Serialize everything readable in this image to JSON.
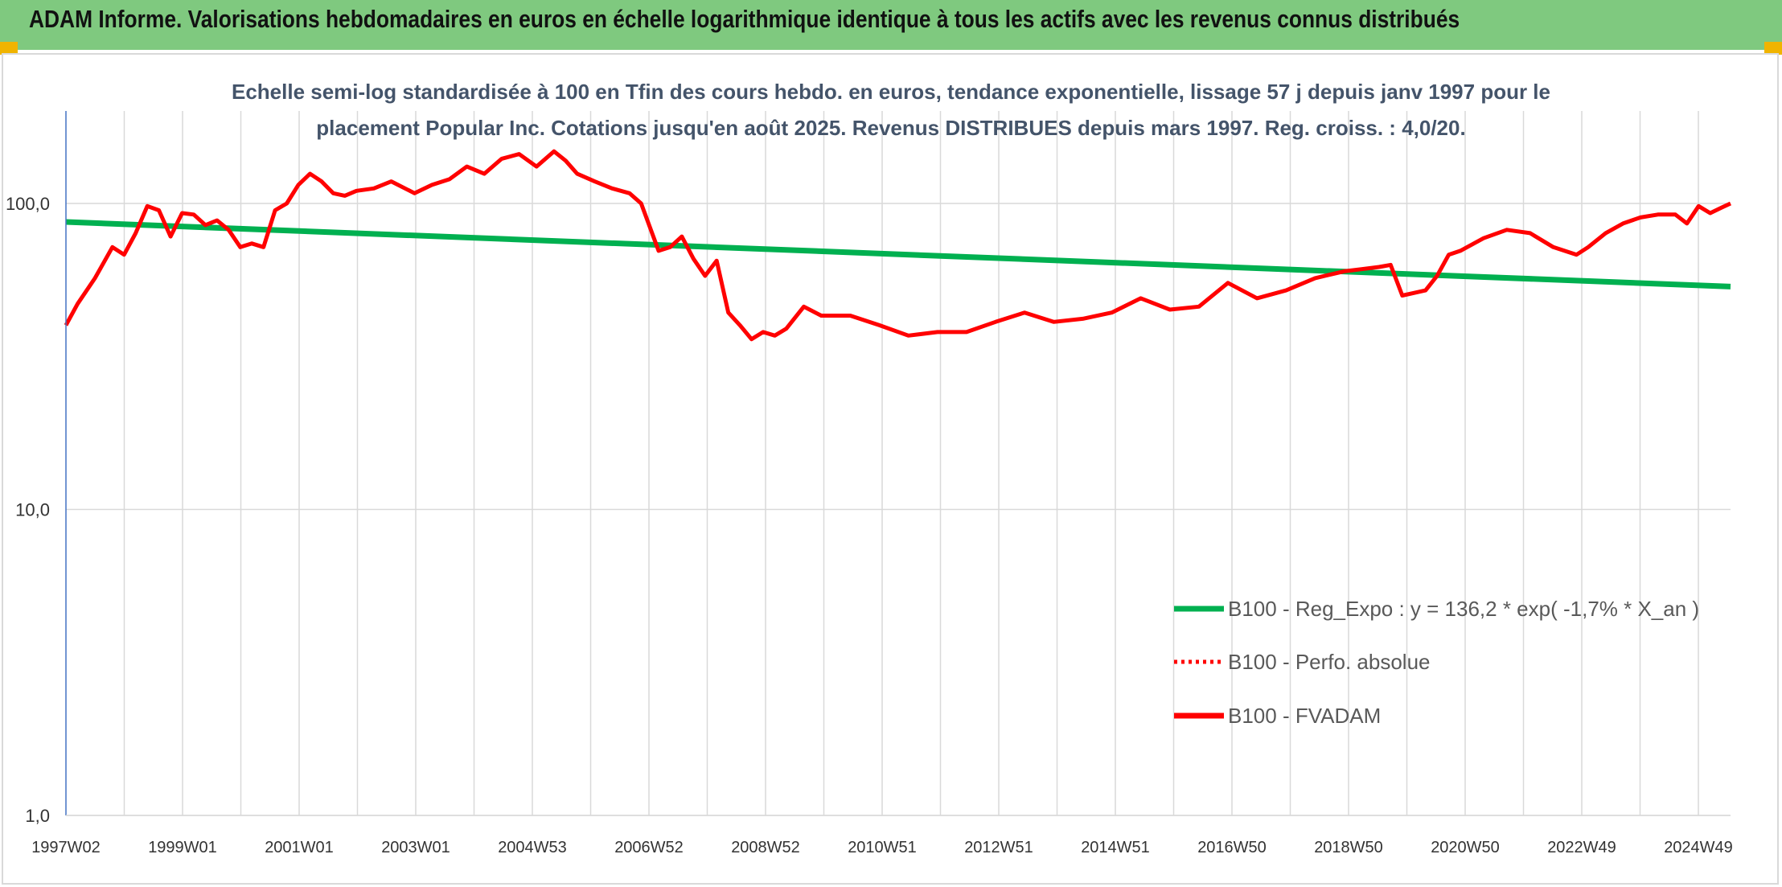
{
  "banner": {
    "title": "ADAM Informe. Valorisations hebdomadaires en euros en échelle logarithmique identique à tous les actifs avec les revenus connus distribués"
  },
  "colors": {
    "banner_bg": "#7fc97f",
    "corner_accent": "#f0b400",
    "regression": "#00b050",
    "fvadam": "#ff0000",
    "gridline": "#d9d9d9"
  },
  "chart_data": {
    "type": "line",
    "subtitle_lines": [
      "Echelle semi-log standardisée à 100 en Tfin des cours hebdo. en euros, tendance exponentielle, lissage 57 j depuis janv 1997 pour le",
      "placement Popular Inc. Cotations jusqu'en août 2025. Revenus DISTRIBUES depuis mars 1997. Reg. croiss. : 4,0/20."
    ],
    "y_scale": "log",
    "ylim": [
      1,
      180
    ],
    "y_ticks": [
      1,
      10,
      100
    ],
    "y_tick_labels": [
      "1,0",
      "10,0",
      "100,0"
    ],
    "x_ticks": [
      "1997W02",
      "1999W01",
      "2001W01",
      "2003W01",
      "2004W53",
      "2006W52",
      "2008W52",
      "2010W51",
      "2012W51",
      "2014W51",
      "2016W50",
      "2018W50",
      "2020W50",
      "2022W49",
      "2024W49"
    ],
    "x_range_years": [
      1997.0,
      2025.65
    ],
    "grid": true,
    "legend_position": "bottom-right",
    "series": [
      {
        "name": "B100 - Reg_Expo : y = 136,2 * exp( -1,7% *  X_an )",
        "style": "solid",
        "color": "#00b050",
        "x": [
          1997.0,
          2025.65
        ],
        "y": [
          87,
          53.5
        ]
      },
      {
        "name": "B100 - Perfo. absolue",
        "style": "dotted",
        "color": "#ff0000",
        "x": [],
        "y": []
      },
      {
        "name": "B100 - FVADAM",
        "style": "solid",
        "color": "#ff0000",
        "x": [
          1997.0,
          1997.2,
          1997.5,
          1997.8,
          1998.0,
          1998.2,
          1998.4,
          1998.6,
          1998.8,
          1999.0,
          1999.2,
          1999.4,
          1999.6,
          1999.8,
          2000.0,
          2000.2,
          2000.4,
          2000.6,
          2000.8,
          2001.0,
          2001.2,
          2001.4,
          2001.6,
          2001.8,
          2002.0,
          2002.3,
          2002.6,
          2003.0,
          2003.3,
          2003.6,
          2003.9,
          2004.2,
          2004.5,
          2004.8,
          2005.1,
          2005.4,
          2005.6,
          2005.8,
          2006.1,
          2006.4,
          2006.7,
          2006.9,
          2007.2,
          2007.4,
          2007.6,
          2007.8,
          2008.0,
          2008.2,
          2008.4,
          2008.6,
          2008.8,
          2009.0,
          2009.2,
          2009.4,
          2009.7,
          2010.0,
          2010.5,
          2011.0,
          2011.5,
          2012.0,
          2012.5,
          2013.0,
          2013.5,
          2014.0,
          2014.5,
          2015.0,
          2015.5,
          2016.0,
          2016.5,
          2017.0,
          2017.5,
          2018.0,
          2018.5,
          2019.0,
          2019.3,
          2019.6,
          2019.8,
          2020.0,
          2020.2,
          2020.4,
          2020.6,
          2020.8,
          2021.0,
          2021.4,
          2021.8,
          2022.2,
          2022.6,
          2023.0,
          2023.2,
          2023.5,
          2023.8,
          2024.1,
          2024.4,
          2024.7,
          2024.9,
          2025.1,
          2025.3,
          2025.5,
          2025.65
        ],
        "y": [
          40,
          47,
          57,
          72,
          68,
          80,
          98,
          95,
          78,
          93,
          92,
          85,
          88,
          82,
          72,
          74,
          72,
          95,
          100,
          115,
          125,
          118,
          108,
          106,
          110,
          112,
          118,
          108,
          115,
          120,
          132,
          125,
          140,
          145,
          132,
          148,
          138,
          125,
          118,
          112,
          108,
          100,
          70,
          72,
          78,
          66,
          58,
          65,
          44,
          40,
          36,
          38,
          37,
          39,
          46,
          43,
          43,
          40,
          37,
          38,
          38,
          41,
          44,
          41,
          42,
          44,
          49,
          45,
          46,
          55,
          49,
          52,
          57,
          60,
          61,
          62,
          63,
          50,
          51,
          52,
          58,
          68,
          70,
          77,
          82,
          80,
          72,
          68,
          72,
          80,
          86,
          90,
          92,
          92,
          86,
          98,
          93,
          97,
          100
        ]
      }
    ]
  }
}
